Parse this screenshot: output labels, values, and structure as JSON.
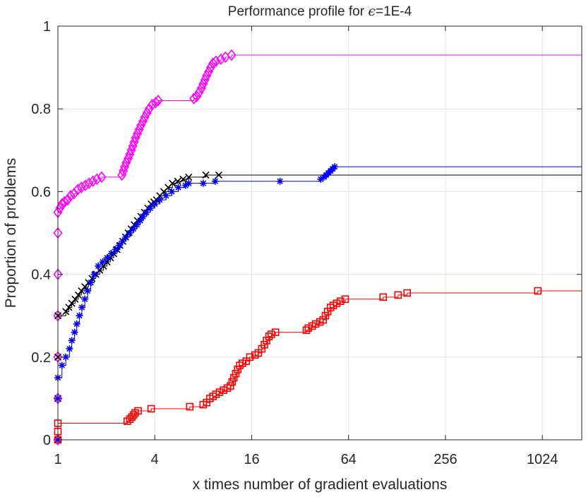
{
  "chart_data": {
    "type": "line",
    "title_prefix": "Performance profile for ",
    "title_symbol": "ϵ",
    "title_suffix": "=1E-4",
    "xlabel": "x times number of gradient evaluations",
    "ylabel": "Proportion of problems",
    "x_scale": "log2",
    "xlim": [
      1,
      1800
    ],
    "ylim": [
      0,
      1
    ],
    "x_ticks": [
      1,
      4,
      16,
      64,
      256,
      1024
    ],
    "x_tick_labels": [
      "1",
      "4",
      "16",
      "64",
      "256",
      "1024"
    ],
    "y_ticks": [
      0,
      0.2,
      0.4,
      0.6,
      0.8,
      1
    ],
    "y_tick_labels": [
      "0",
      "0.2",
      "0.4",
      "0.6",
      "0.8",
      "1"
    ],
    "grid": true,
    "legend": "none",
    "series": [
      {
        "color": "#ff00ff",
        "marker": "diamond",
        "points": [
          [
            1,
            0.0
          ],
          [
            1,
            0.1
          ],
          [
            1,
            0.2
          ],
          [
            1,
            0.3
          ],
          [
            1,
            0.4
          ],
          [
            1,
            0.5
          ],
          [
            1,
            0.55
          ],
          [
            1.03,
            0.56
          ],
          [
            1.06,
            0.57
          ],
          [
            1.1,
            0.575
          ],
          [
            1.15,
            0.58
          ],
          [
            1.2,
            0.59
          ],
          [
            1.26,
            0.595
          ],
          [
            1.33,
            0.605
          ],
          [
            1.4,
            0.61
          ],
          [
            1.48,
            0.615
          ],
          [
            1.56,
            0.62
          ],
          [
            1.65,
            0.625
          ],
          [
            1.75,
            0.63
          ],
          [
            1.87,
            0.635
          ],
          [
            2.5,
            0.64
          ],
          [
            2.55,
            0.65
          ],
          [
            2.6,
            0.66
          ],
          [
            2.66,
            0.67
          ],
          [
            2.73,
            0.68
          ],
          [
            2.8,
            0.69
          ],
          [
            2.86,
            0.7
          ],
          [
            2.92,
            0.71
          ],
          [
            2.98,
            0.72
          ],
          [
            3.04,
            0.73
          ],
          [
            3.12,
            0.74
          ],
          [
            3.2,
            0.75
          ],
          [
            3.28,
            0.76
          ],
          [
            3.38,
            0.77
          ],
          [
            3.47,
            0.78
          ],
          [
            3.58,
            0.79
          ],
          [
            3.69,
            0.8
          ],
          [
            3.85,
            0.81
          ],
          [
            4.05,
            0.815
          ],
          [
            4.2,
            0.82
          ],
          [
            7.0,
            0.825
          ],
          [
            7.3,
            0.83
          ],
          [
            7.55,
            0.84
          ],
          [
            7.8,
            0.85
          ],
          [
            8.0,
            0.86
          ],
          [
            8.2,
            0.87
          ],
          [
            8.4,
            0.88
          ],
          [
            8.65,
            0.89
          ],
          [
            8.9,
            0.9
          ],
          [
            9.2,
            0.91
          ],
          [
            9.6,
            0.915
          ],
          [
            10.3,
            0.92
          ],
          [
            11.0,
            0.925
          ],
          [
            12.0,
            0.93
          ]
        ],
        "end": [
          1800,
          0.932
        ]
      },
      {
        "color": "#000000",
        "marker": "x",
        "points": [
          [
            1,
            0.0
          ],
          [
            1,
            0.1
          ],
          [
            1,
            0.2
          ],
          [
            1,
            0.3
          ],
          [
            1.12,
            0.31
          ],
          [
            1.17,
            0.32
          ],
          [
            1.22,
            0.33
          ],
          [
            1.28,
            0.34
          ],
          [
            1.34,
            0.35
          ],
          [
            1.4,
            0.36
          ],
          [
            1.47,
            0.37
          ],
          [
            1.55,
            0.38
          ],
          [
            1.63,
            0.39
          ],
          [
            1.72,
            0.4
          ],
          [
            1.82,
            0.41
          ],
          [
            1.92,
            0.42
          ],
          [
            2.02,
            0.43
          ],
          [
            2.12,
            0.44
          ],
          [
            2.22,
            0.45
          ],
          [
            2.33,
            0.46
          ],
          [
            2.43,
            0.47
          ],
          [
            2.53,
            0.48
          ],
          [
            2.63,
            0.49
          ],
          [
            2.73,
            0.5
          ],
          [
            2.85,
            0.51
          ],
          [
            2.98,
            0.52
          ],
          [
            3.12,
            0.53
          ],
          [
            3.28,
            0.54
          ],
          [
            3.45,
            0.55
          ],
          [
            3.62,
            0.56
          ],
          [
            3.8,
            0.57
          ],
          [
            3.95,
            0.575
          ],
          [
            4.1,
            0.58
          ],
          [
            4.3,
            0.59
          ],
          [
            4.55,
            0.6
          ],
          [
            4.85,
            0.61
          ],
          [
            5.15,
            0.62
          ],
          [
            5.55,
            0.625
          ],
          [
            6.0,
            0.63
          ],
          [
            6.5,
            0.635
          ],
          [
            8.3,
            0.64
          ],
          [
            10.0,
            0.64
          ]
        ],
        "end": [
          1800,
          0.64
        ]
      },
      {
        "color": "#0000ff",
        "marker": "asterisk",
        "points": [
          [
            1,
            0.0
          ],
          [
            1,
            0.1
          ],
          [
            1,
            0.15
          ],
          [
            1.06,
            0.18
          ],
          [
            1.12,
            0.2
          ],
          [
            1.18,
            0.22
          ],
          [
            1.22,
            0.24
          ],
          [
            1.27,
            0.26
          ],
          [
            1.31,
            0.28
          ],
          [
            1.36,
            0.3
          ],
          [
            1.41,
            0.32
          ],
          [
            1.47,
            0.34
          ],
          [
            1.53,
            0.36
          ],
          [
            1.6,
            0.38
          ],
          [
            1.68,
            0.4
          ],
          [
            1.78,
            0.42
          ],
          [
            1.9,
            0.43
          ],
          [
            2.02,
            0.44
          ],
          [
            2.15,
            0.45
          ],
          [
            2.28,
            0.46
          ],
          [
            2.4,
            0.47
          ],
          [
            2.52,
            0.48
          ],
          [
            2.65,
            0.49
          ],
          [
            2.8,
            0.5
          ],
          [
            2.95,
            0.51
          ],
          [
            3.1,
            0.52
          ],
          [
            3.25,
            0.53
          ],
          [
            3.38,
            0.54
          ],
          [
            3.55,
            0.55
          ],
          [
            3.75,
            0.56
          ],
          [
            4.0,
            0.57
          ],
          [
            4.3,
            0.58
          ],
          [
            4.7,
            0.59
          ],
          [
            5.1,
            0.6
          ],
          [
            5.6,
            0.61
          ],
          [
            6.2,
            0.615
          ],
          [
            6.5,
            0.62
          ],
          [
            8.0,
            0.62
          ],
          [
            9.5,
            0.625
          ],
          [
            24.0,
            0.625
          ],
          [
            43.0,
            0.63
          ],
          [
            45.0,
            0.635
          ],
          [
            46.5,
            0.64
          ],
          [
            48.0,
            0.645
          ],
          [
            49.5,
            0.65
          ],
          [
            51.0,
            0.655
          ],
          [
            52.5,
            0.66
          ]
        ],
        "end": [
          1800,
          0.662
        ]
      },
      {
        "color": "#ff0000",
        "marker": "square",
        "points": [
          [
            1,
            0.0
          ],
          [
            1,
            0.02
          ],
          [
            1,
            0.04
          ],
          [
            2.7,
            0.045
          ],
          [
            2.8,
            0.05
          ],
          [
            2.88,
            0.055
          ],
          [
            2.95,
            0.06
          ],
          [
            3.02,
            0.065
          ],
          [
            3.15,
            0.07
          ],
          [
            3.8,
            0.075
          ],
          [
            6.6,
            0.08
          ],
          [
            8.0,
            0.085
          ],
          [
            8.4,
            0.09
          ],
          [
            8.8,
            0.1
          ],
          [
            9.2,
            0.105
          ],
          [
            9.6,
            0.11
          ],
          [
            10.1,
            0.115
          ],
          [
            10.7,
            0.12
          ],
          [
            11.3,
            0.125
          ],
          [
            11.8,
            0.13
          ],
          [
            12.1,
            0.14
          ],
          [
            12.4,
            0.15
          ],
          [
            12.75,
            0.16
          ],
          [
            13.1,
            0.17
          ],
          [
            13.5,
            0.18
          ],
          [
            14.0,
            0.185
          ],
          [
            14.8,
            0.19
          ],
          [
            15.6,
            0.2
          ],
          [
            16.8,
            0.205
          ],
          [
            17.6,
            0.21
          ],
          [
            18.5,
            0.22
          ],
          [
            19.2,
            0.23
          ],
          [
            19.8,
            0.24
          ],
          [
            20.5,
            0.25
          ],
          [
            21.2,
            0.255
          ],
          [
            22.5,
            0.26
          ],
          [
            35.0,
            0.265
          ],
          [
            36.0,
            0.27
          ],
          [
            38.0,
            0.275
          ],
          [
            40.0,
            0.28
          ],
          [
            42.5,
            0.285
          ],
          [
            44.5,
            0.29
          ],
          [
            46.0,
            0.3
          ],
          [
            47.5,
            0.31
          ],
          [
            49.5,
            0.32
          ],
          [
            51.5,
            0.325
          ],
          [
            54.0,
            0.33
          ],
          [
            57.0,
            0.335
          ],
          [
            61.0,
            0.34
          ],
          [
            105.0,
            0.345
          ],
          [
            130.0,
            0.35
          ],
          [
            148.0,
            0.355
          ],
          [
            960.0,
            0.36
          ]
        ],
        "end": [
          1800,
          0.362
        ]
      }
    ]
  }
}
